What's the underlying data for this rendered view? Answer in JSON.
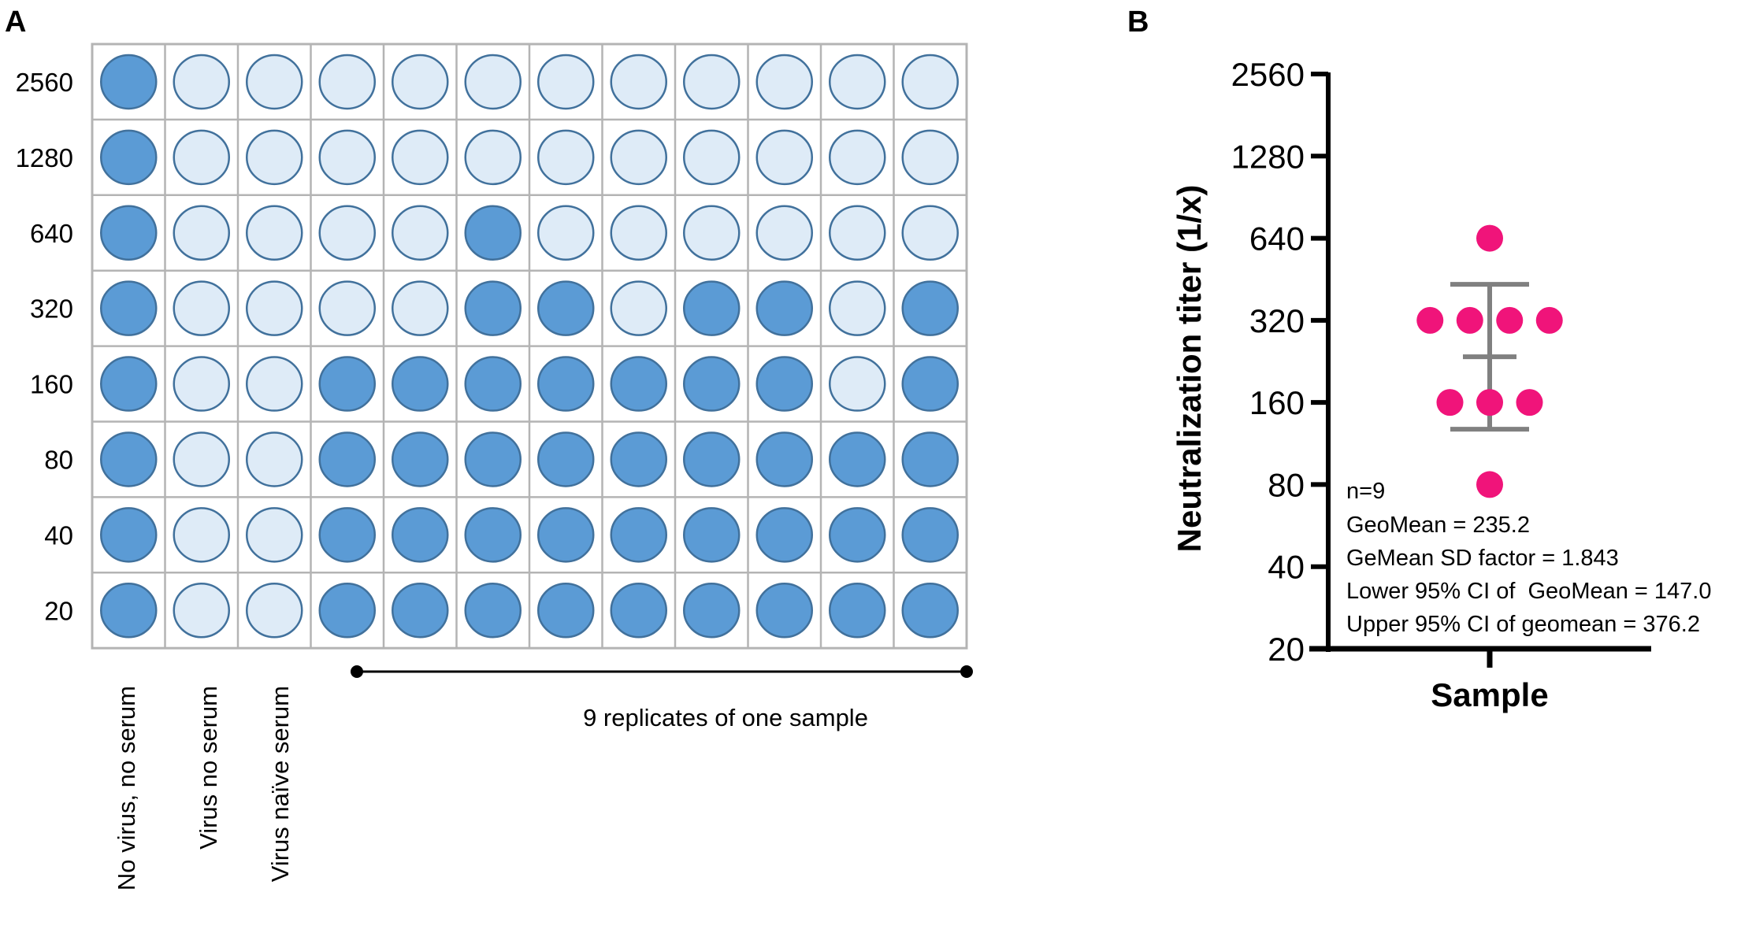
{
  "panel_a": {
    "letter": "A",
    "row_labels": [
      "2560",
      "1280",
      "640",
      "320",
      "160",
      "80",
      "40",
      "20"
    ],
    "column_labels": [
      "No virus, no serum",
      "Virus no serum",
      "Virus naïve serum"
    ],
    "replicate_label": "9 replicates of one sample",
    "colors": {
      "filled": "#5b9bd5",
      "empty": "#deebf7",
      "well_border": "#41719c",
      "grid": "#b4b4b4"
    },
    "wells": [
      [
        1,
        0,
        0,
        0,
        0,
        0,
        0,
        0,
        0,
        0,
        0,
        0
      ],
      [
        1,
        0,
        0,
        0,
        0,
        0,
        0,
        0,
        0,
        0,
        0,
        0
      ],
      [
        1,
        0,
        0,
        0,
        0,
        1,
        0,
        0,
        0,
        0,
        0,
        0
      ],
      [
        1,
        0,
        0,
        0,
        0,
        1,
        1,
        0,
        1,
        1,
        0,
        1
      ],
      [
        1,
        0,
        0,
        1,
        1,
        1,
        1,
        1,
        1,
        1,
        0,
        1
      ],
      [
        1,
        0,
        0,
        1,
        1,
        1,
        1,
        1,
        1,
        1,
        1,
        1
      ],
      [
        1,
        0,
        0,
        1,
        1,
        1,
        1,
        1,
        1,
        1,
        1,
        1
      ],
      [
        1,
        0,
        0,
        1,
        1,
        1,
        1,
        1,
        1,
        1,
        1,
        1
      ]
    ]
  },
  "chart_data": {
    "letter": "B",
    "type": "scatter",
    "categories": [
      "Sample"
    ],
    "xlabel": "Sample",
    "ylabel": "Neutralization titer (1/x)",
    "yscale": "log2",
    "ylim": [
      20,
      2560
    ],
    "yticks": [
      "2560",
      "1280",
      "640",
      "320",
      "160",
      "80",
      "40",
      "20"
    ],
    "values": [
      640,
      320,
      320,
      320,
      320,
      160,
      160,
      160,
      80
    ],
    "geomean": 235.2,
    "error_bar": {
      "type": "geometric SD",
      "lower": 127.6,
      "upper": 433.5
    },
    "point_color": "#f0147a",
    "error_bar_color": "#808080",
    "annotations": [
      "n=9",
      "GeoMean = 235.2",
      "GeMean SD factor = 1.843",
      "Lower 95% CI of  GeoMean = 147.0",
      "Upper 95% CI of geomean = 376.2"
    ],
    "grid": false
  }
}
